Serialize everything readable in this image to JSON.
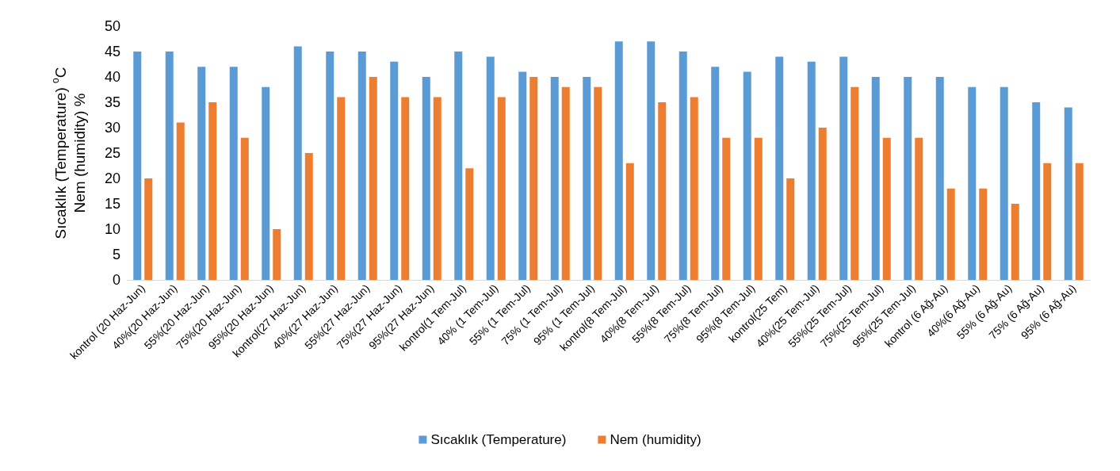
{
  "chart_data": {
    "type": "bar",
    "ylabel": "Sıcaklık (Temperature) $^{o}$C\nNem (humidity) %",
    "categories": [
      "kontrol (20 Haz-Jun)",
      "40%(20 Haz-Jun)",
      "55%(20 Haz-Jun)",
      "75%(20 Haz-Jun)",
      "95%(20 Haz-Jun)",
      "kontrol(27 Haz-Jun)",
      "40%(27 Haz-Jun)",
      "55%(27 Haz-Jun)",
      "75%(27 Haz-Jun)",
      "95%(27 Haz-Jun)",
      "kontrol(1 Tem-Jul)",
      "40% (1 Tem-Jul)",
      "55% (1 Tem-Jul)",
      "75% (1 Tem-Jul)",
      "95% (1 Tem-Jul)",
      "kontrol(8 Tem-Jul)",
      "40%(8 Tem-Jul)",
      "55%(8 Tem-Jul)",
      "75%(8 Tem-Jul)",
      "95%(8 Tem-Jul)",
      "kontrol(25 Tem)",
      "40%(25 Tem-Jul)",
      "55%(25 Tem-Jul)",
      "75%(25 Tem-Jul)",
      "95%(25 Tem-Jul)",
      "kontrol (6 Ağ-Au)",
      "40%(6 Ağ-Au)",
      "55% (6 Ağ-Au)",
      "75% (6 Ağ-Au)",
      "95% (6 Ağ-Au)"
    ],
    "series": [
      {
        "name": "Sıcaklık (Temperature)",
        "color": "#5b9bd5",
        "values": [
          45,
          45,
          42,
          42,
          38,
          46,
          45,
          45,
          43,
          40,
          45,
          44,
          41,
          40,
          40,
          47,
          47,
          45,
          42,
          41,
          44,
          43,
          44,
          40,
          40,
          40,
          38,
          38,
          35,
          34
        ]
      },
      {
        "name": "Nem (humidity)",
        "color": "#ed7d31",
        "values": [
          20,
          31,
          35,
          28,
          10,
          25,
          36,
          40,
          36,
          36,
          22,
          36,
          40,
          38,
          38,
          23,
          35,
          36,
          28,
          28,
          20,
          30,
          38,
          28,
          28,
          18,
          18,
          15,
          23,
          23
        ]
      }
    ],
    "ylim": [
      0,
      50
    ],
    "yticks": [
      0,
      5,
      10,
      15,
      20,
      25,
      30,
      35,
      40,
      45,
      50
    ],
    "grid": false,
    "legend": "bottom"
  }
}
